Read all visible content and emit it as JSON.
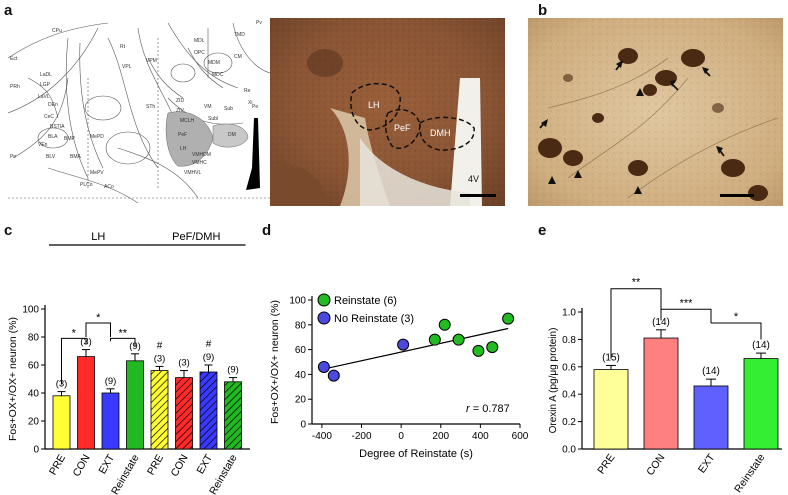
{
  "panels": {
    "a": "a",
    "b": "b",
    "c": "c",
    "d": "d",
    "e": "e"
  },
  "atlas_labels": [
    "Pir",
    "Ect",
    "PRh",
    "LaDL",
    "LGP",
    "LaVL",
    "DEn",
    "CeC",
    "ASt",
    "BSTIA",
    "CeL",
    "BLA",
    "VEn",
    "BLV",
    "BMP",
    "BMA",
    "MePD",
    "CPu",
    "Rt",
    "VPL",
    "VPM",
    "STh",
    "MDL",
    "OPC",
    "MDM",
    "MDC",
    "CM",
    "TMD",
    "ZID",
    "ZIV",
    "VM",
    "SubI",
    "Sub",
    "VMHDM",
    "VMHC",
    "VMHVL",
    "MePV",
    "ACo",
    "PLCo",
    "PeF",
    "DM",
    "LH",
    "MCLH",
    "3V",
    "Re",
    "Rh",
    "Xi",
    "Pe",
    "Pv",
    "PeF",
    "Pc",
    "LHb",
    "MHb"
  ],
  "histology_a_labels": {
    "lh": "LH",
    "pef": "PeF",
    "dmh": "DMH",
    "v4": "4V"
  },
  "chart_c": {
    "group_labels": [
      "LH",
      "PeF/DMH"
    ],
    "ylabel": "Fos+OX+/OX+ neuron (%)",
    "yticks": [
      "0",
      "20",
      "40",
      "60",
      "80",
      "100"
    ],
    "colors": [
      "#ffff33",
      "#ff2a2a",
      "#3a3aff",
      "#22b822"
    ],
    "significance": [
      "*",
      "*",
      "**"
    ],
    "hash_marks": [
      "#",
      "#"
    ]
  },
  "chart_d": {
    "ylabel": "Fos+OX+/OX+ neuron (%)",
    "xlabel": "Degree of Reinstate (s)",
    "xticks": [
      "-400",
      "-200",
      "0",
      "200",
      "400",
      "600"
    ],
    "yticks": [
      "0",
      "20",
      "40",
      "60",
      "80",
      "100"
    ],
    "legend": [
      {
        "name": "Reinstate (6)",
        "color": "#22bb22"
      },
      {
        "name": "No Reinstate (3)",
        "color": "#4a4ae0"
      }
    ],
    "r_label": "r",
    "r_value": "= 0.787"
  },
  "chart_e": {
    "ylabel": "Orexin A (pg/μg protein)",
    "yticks": [
      "0.0",
      "0.2",
      "0.4",
      "0.6",
      "0.8",
      "1.0"
    ],
    "significance": [
      "**",
      "***",
      "*"
    ]
  },
  "chart_data": [
    {
      "type": "bar",
      "panel": "c",
      "ylabel": "Fos+OX+/OX+ neuron (%)",
      "ylim": [
        0,
        100
      ],
      "categories": [
        "PRE",
        "CON",
        "EXT",
        "Reinstate",
        "PRE",
        "CON",
        "EXT",
        "Reinstate"
      ],
      "groups": [
        "LH",
        "LH",
        "LH",
        "LH",
        "PeF/DMH",
        "PeF/DMH",
        "PeF/DMH",
        "PeF/DMH"
      ],
      "values": [
        38,
        66,
        40,
        63,
        56,
        51,
        55,
        48
      ],
      "errors": [
        3,
        5,
        3,
        5,
        3,
        5,
        5,
        3
      ],
      "n_labels": [
        "(3)",
        "(3)",
        "(9)",
        "(9)",
        "(3)",
        "(3)",
        "(9)",
        "(9)"
      ],
      "hatched": [
        false,
        false,
        false,
        false,
        true,
        true,
        true,
        true
      ]
    },
    {
      "type": "scatter",
      "panel": "d",
      "xlabel": "Degree of Reinstate (s)",
      "ylabel": "Fos+OX+/OX+ neuron (%)",
      "xlim": [
        -450,
        600
      ],
      "ylim": [
        0,
        100
      ],
      "series": [
        {
          "name": "Reinstate (6)",
          "x": [
            170,
            220,
            290,
            390,
            460,
            540
          ],
          "y": [
            68,
            80,
            68,
            59,
            62,
            85
          ]
        },
        {
          "name": "No Reinstate (3)",
          "x": [
            -390,
            -340,
            10
          ],
          "y": [
            46,
            39,
            64
          ]
        }
      ],
      "fit_line": {
        "x": [
          -400,
          540
        ],
        "y": [
          44,
          77
        ]
      },
      "annotation": "r = 0.787"
    },
    {
      "type": "bar",
      "panel": "e",
      "ylabel": "Orexin A (pg/μg protein)",
      "ylim": [
        0,
        1.0
      ],
      "categories": [
        "PRE",
        "CON",
        "EXT",
        "Reinstate"
      ],
      "values": [
        0.58,
        0.81,
        0.46,
        0.66
      ],
      "errors": [
        0.03,
        0.06,
        0.05,
        0.04
      ],
      "n_labels": [
        "(15)",
        "(14)",
        "(14)",
        "(14)"
      ],
      "colors": [
        "#ffff99",
        "#ff8080",
        "#6060ff",
        "#33ee33"
      ]
    }
  ]
}
